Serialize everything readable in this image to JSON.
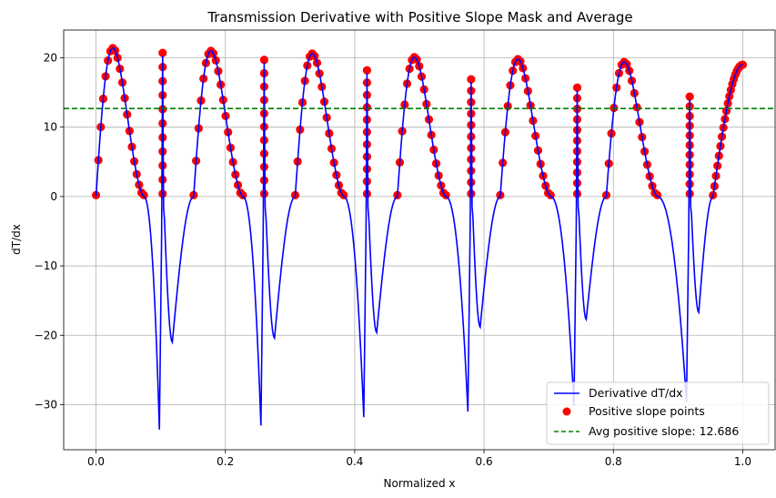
{
  "chart_data": {
    "type": "line",
    "title": "Transmission Derivative with Positive Slope Mask and Average",
    "xlabel": "Normalized x",
    "ylabel": "dT/dx",
    "xlim": [
      -0.05,
      1.05
    ],
    "ylim": [
      -36.5,
      24
    ],
    "xticks": [
      0.0,
      0.2,
      0.4,
      0.6,
      0.8,
      1.0
    ],
    "xtick_labels": [
      "0.0",
      "0.2",
      "0.4",
      "0.6",
      "0.8",
      "1.0"
    ],
    "yticks": [
      -30,
      -20,
      -10,
      0,
      10,
      20
    ],
    "ytick_labels": [
      "−30",
      "−20",
      "−10",
      "0",
      "10",
      "20"
    ],
    "grid": true,
    "legend_position": "lower-right",
    "average": 12.686,
    "segments": [
      {
        "x0": 0.0,
        "x1": 0.074,
        "peak": 21.4,
        "spike_x": 0.103,
        "spike_peak": 20.3,
        "spike_min": -33.6,
        "trough_x": 0.118,
        "trough": -21.0
      },
      {
        "x0": 0.151,
        "x1": 0.227,
        "peak": 21.0,
        "spike_x": 0.26,
        "spike_peak": 19.3,
        "spike_min": -33.0,
        "trough_x": 0.276,
        "trough": -20.4
      },
      {
        "x0": 0.308,
        "x1": 0.383,
        "peak": 20.6,
        "spike_x": 0.419,
        "spike_peak": 17.8,
        "spike_min": -31.8,
        "trough_x": 0.434,
        "trough": -19.6
      },
      {
        "x0": 0.466,
        "x1": 0.541,
        "peak": 20.1,
        "spike_x": 0.58,
        "spike_peak": 16.5,
        "spike_min": -31.0,
        "trough_x": 0.594,
        "trough": -18.8
      },
      {
        "x0": 0.625,
        "x1": 0.703,
        "peak": 19.8,
        "spike_x": 0.744,
        "spike_peak": 15.3,
        "spike_min": -30.2,
        "trough_x": 0.758,
        "trough": -17.7
      },
      {
        "x0": 0.789,
        "x1": 0.868,
        "peak": 19.4,
        "spike_x": 0.918,
        "spike_peak": 14.0,
        "spike_min": -29.6,
        "trough_x": 0.932,
        "trough": -16.7
      },
      {
        "x0": 0.954,
        "x1": 1.0,
        "peak": 19.0,
        "open_end": true
      }
    ],
    "legend": [
      {
        "label": "Derivative dT/dx",
        "color": "#0000ff",
        "kind": "line"
      },
      {
        "label": "Positive slope points",
        "color": "#ff0000",
        "kind": "marker"
      },
      {
        "label": "Avg positive slope: 12.686",
        "color": "#008000",
        "kind": "dashed"
      }
    ]
  }
}
